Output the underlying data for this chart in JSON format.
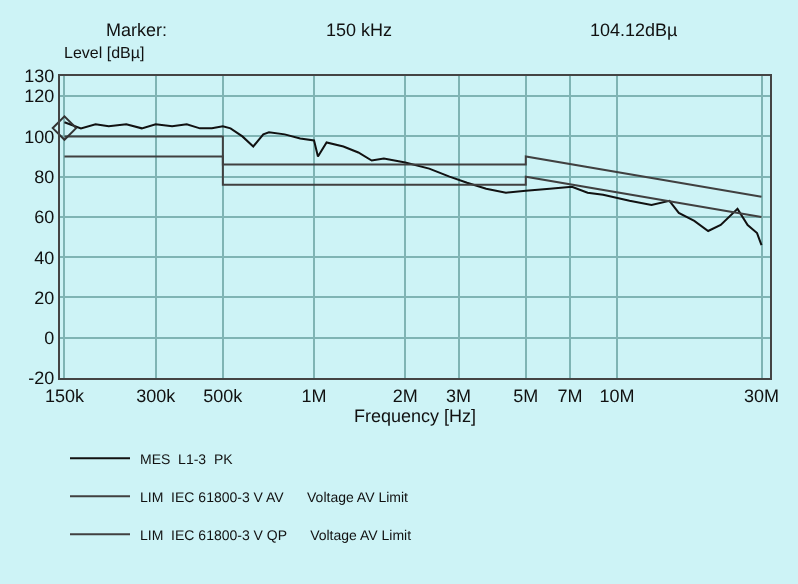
{
  "chart_data": {
    "type": "line",
    "annotations": [
      "Marker:",
      "150 kHz",
      "104.12dBµ"
    ],
    "ylabel": "Level [dBµ]",
    "xlabel": "Frequency [Hz]",
    "log": "x",
    "xlim": [
      145000,
      32000000
    ],
    "xticks": [
      {
        "value": 150000,
        "label": "150k"
      },
      {
        "value": 300000,
        "label": "300k"
      },
      {
        "value": 500000,
        "label": "500k"
      },
      {
        "value": 1000000,
        "label": "1M"
      },
      {
        "value": 2000000,
        "label": "2M"
      },
      {
        "value": 3000000,
        "label": "3M"
      },
      {
        "value": 5000000,
        "label": "5M"
      },
      {
        "value": 7000000,
        "label": "7M"
      },
      {
        "value": 10000000,
        "label": "10M"
      },
      {
        "value": 30000000,
        "label": "30M"
      }
    ],
    "ylim": [
      -20,
      130
    ],
    "yticks": [
      -20,
      0,
      20,
      40,
      60,
      80,
      100,
      120,
      130
    ],
    "grid": true,
    "legend": "bottom",
    "series": [
      {
        "name": "MES  L1-3  PK",
        "color": "#111111",
        "x": [
          150000,
          170000,
          190000,
          210000,
          240000,
          270000,
          300000,
          340000,
          380000,
          420000,
          460000,
          500000,
          530000,
          580000,
          630000,
          680000,
          710000,
          800000,
          900000,
          1000000,
          1030000,
          1100000,
          1250000,
          1400000,
          1550000,
          1700000,
          2000000,
          2400000,
          2800000,
          3200000,
          3700000,
          4300000,
          5000000,
          6000000,
          7100000,
          8000000,
          9000000,
          11000000,
          13000000,
          14900000,
          16000000,
          18000000,
          20000000,
          22000000,
          25000000,
          27000000,
          29000000,
          30000000
        ],
        "values": [
          107,
          104,
          106,
          105,
          106,
          104,
          106,
          105,
          106,
          104,
          104,
          105,
          104,
          100,
          95,
          101,
          102,
          101,
          99,
          98,
          90,
          97,
          95,
          92,
          88,
          89,
          87,
          84,
          80,
          77,
          74,
          72,
          73,
          74,
          75,
          72,
          71,
          68,
          66,
          68,
          62,
          58,
          53,
          56,
          64,
          56,
          52,
          46
        ]
      },
      {
        "name": "LIM  IEC 61800-3 V AV      Voltage AV Limit",
        "color": "#404040",
        "x": [
          150000,
          500000,
          500000,
          5000000,
          5000000,
          30000000
        ],
        "values": [
          100,
          100,
          76,
          76,
          80,
          60
        ]
      },
      {
        "name": "LIM  IEC 61800-3 V QP      Voltage AV Limit",
        "color": "#404040",
        "x": [
          150000,
          500000,
          500000,
          5000000,
          5000000,
          30000000
        ],
        "values": [
          90,
          90,
          86,
          86,
          90,
          70
        ]
      },
      {
        "type": "scatter",
        "marker": "diamond",
        "color": "#333333",
        "x": [
          150000
        ],
        "values": [
          104.12
        ]
      }
    ]
  }
}
